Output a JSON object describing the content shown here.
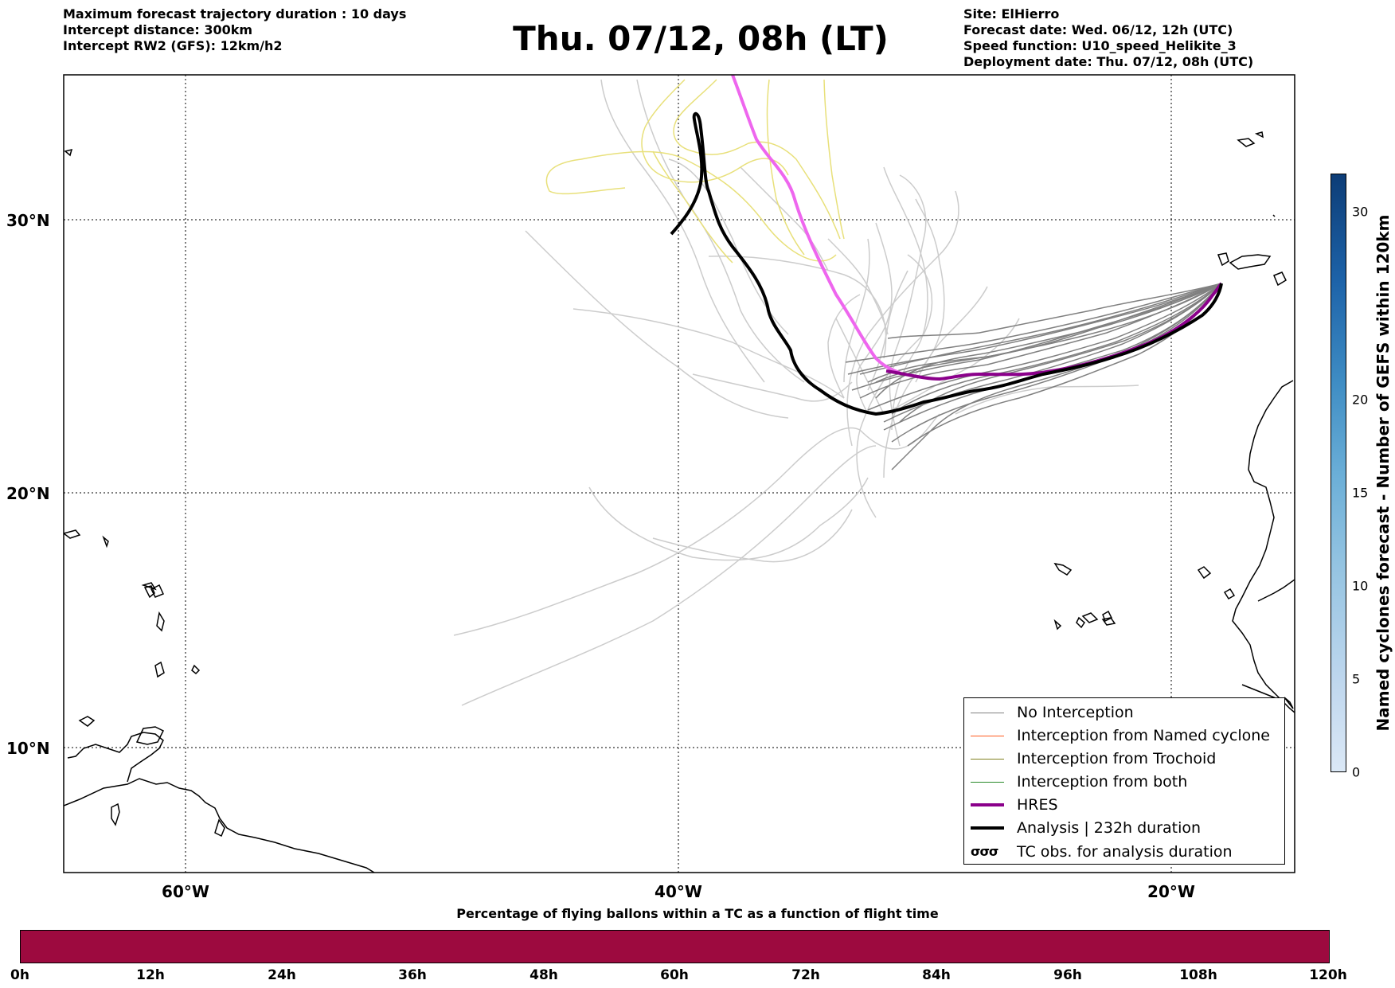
{
  "header_left": [
    "Maximum forecast trajectory duration : 10 days",
    "Intercept distance: 300km",
    "Intercept RW2 (GFS):  12km/h2"
  ],
  "title": "Thu. 07/12, 08h (LT)",
  "header_right": [
    "Site: ElHierro",
    "Forecast date: Wed. 06/12, 12h (UTC)",
    "Speed function: U10_speed_Helikite_3",
    "Deployment date: Thu. 07/12, 08h (UTC)"
  ],
  "map": {
    "lat_labels": [
      "30°N",
      "20°N",
      "10°N"
    ],
    "lon_labels": [
      "60°W",
      "40°W",
      "20°W"
    ]
  },
  "legend": {
    "items": [
      {
        "label": "No Interception",
        "color": "#808080"
      },
      {
        "label": "Interception from Named cyclone",
        "color": "#ff5a1f"
      },
      {
        "label": "Interception from Trochoid",
        "color": "#808020"
      },
      {
        "label": "Interception from both",
        "color": "#2a8a2a"
      },
      {
        "label": "HRES",
        "color": "#8b008b"
      },
      {
        "label": "Analysis | 232h duration",
        "color": "#000000"
      },
      {
        "label": "TC obs. for analysis duration",
        "color": "#000000",
        "icon": "cyclone-symbols-icon"
      }
    ]
  },
  "colorbar": {
    "title": "Named cyclones forecast - Number of GEFS within 120km",
    "ticks": [
      "0",
      "5",
      "10",
      "15",
      "20",
      "30"
    ]
  },
  "bottom_bar": {
    "title": "Percentage of flying ballons within a TC as a function of flight time",
    "color": "#9d0a3f",
    "ticks": [
      "0h",
      "12h",
      "24h",
      "36h",
      "48h",
      "60h",
      "72h",
      "84h",
      "96h",
      "108h",
      "120h"
    ]
  }
}
